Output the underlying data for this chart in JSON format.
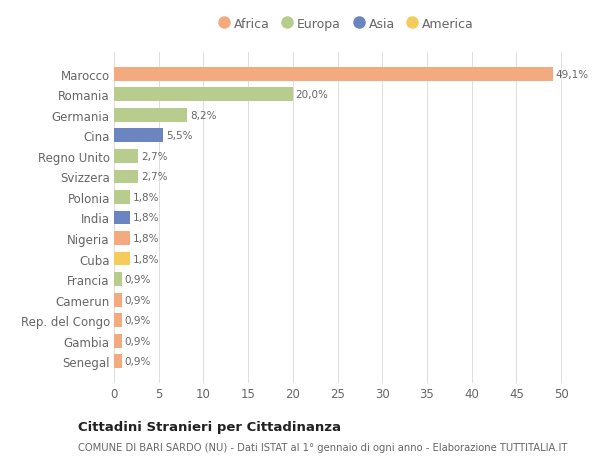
{
  "categories": [
    "Marocco",
    "Romania",
    "Germania",
    "Cina",
    "Regno Unito",
    "Svizzera",
    "Polonia",
    "India",
    "Nigeria",
    "Cuba",
    "Francia",
    "Camerun",
    "Rep. del Congo",
    "Gambia",
    "Senegal"
  ],
  "values": [
    49.1,
    20.0,
    8.2,
    5.5,
    2.7,
    2.7,
    1.8,
    1.8,
    1.8,
    1.8,
    0.9,
    0.9,
    0.9,
    0.9,
    0.9
  ],
  "labels": [
    "49,1%",
    "20,0%",
    "8,2%",
    "5,5%",
    "2,7%",
    "2,7%",
    "1,8%",
    "1,8%",
    "1,8%",
    "1,8%",
    "0,9%",
    "0,9%",
    "0,9%",
    "0,9%",
    "0,9%"
  ],
  "continents": [
    "Africa",
    "Europa",
    "Europa",
    "Asia",
    "Europa",
    "Europa",
    "Europa",
    "Asia",
    "Africa",
    "America",
    "Europa",
    "Africa",
    "Africa",
    "Africa",
    "Africa"
  ],
  "colors": {
    "Africa": "#F2AA7E",
    "Europa": "#B8CC8E",
    "Asia": "#6B85C0",
    "America": "#F5CB5C"
  },
  "xlim": [
    0,
    52
  ],
  "xticks": [
    0,
    5,
    10,
    15,
    20,
    25,
    30,
    35,
    40,
    45,
    50
  ],
  "title": "Cittadini Stranieri per Cittadinanza",
  "subtitle": "COMUNE DI BARI SARDO (NU) - Dati ISTAT al 1° gennaio di ogni anno - Elaborazione TUTTITALIA.IT",
  "background_color": "#ffffff",
  "grid_color": "#dddddd",
  "bar_height": 0.68,
  "legend_order": [
    "Africa",
    "Europa",
    "Asia",
    "America"
  ]
}
